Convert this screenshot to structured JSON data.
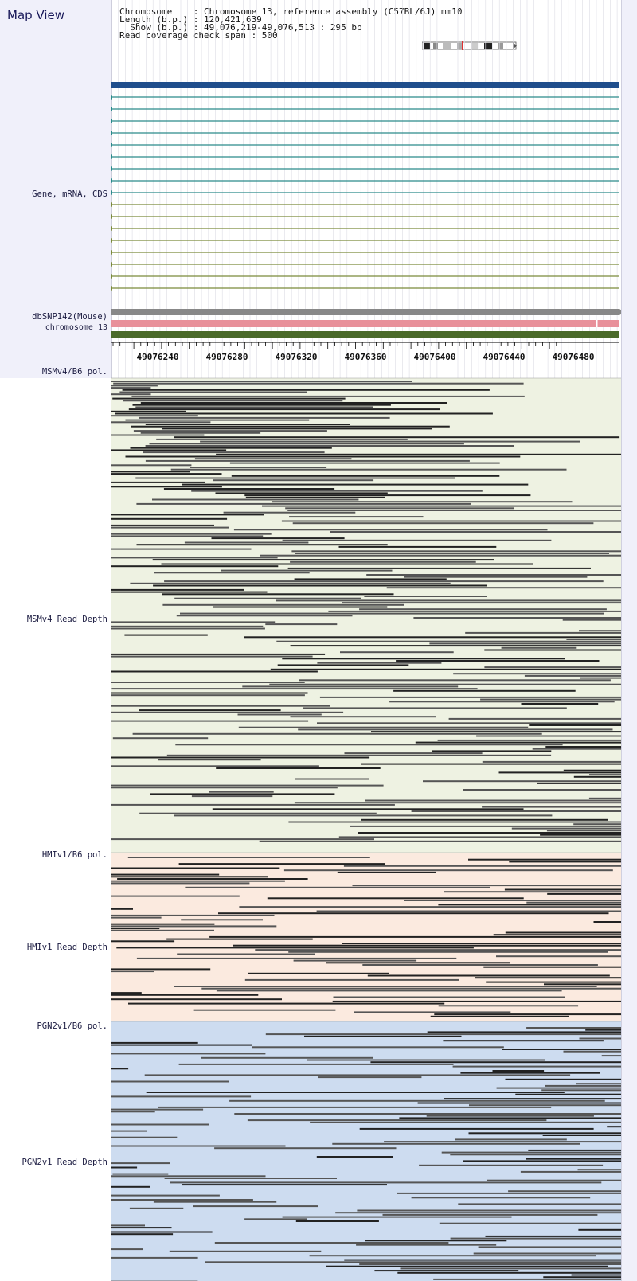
{
  "app": {
    "title": "Map View"
  },
  "header": {
    "chromosome_line": "Chromosome    : Chromosome 13, reference assembly (C57BL/6J) mm10",
    "length_line": "Length (b.p.) : 120,421,639",
    "show_line": "  Show (b.p.) : 49,076,219-49,076,513 : 295 bp",
    "span_line": "Read coverage check span : 500"
  },
  "labels": {
    "gene": "Gene, mRNA, CDS",
    "dbsnp": "dbSNP142(Mouse)",
    "chromosome": "chromosome 13",
    "msm_pol": "MSMv4/B6 pol.",
    "msm_depth": "MSMv4 Read Depth",
    "hmi_pol": "HMIv1/B6 pol.",
    "hmi_depth": "HMIv1 Read Depth",
    "pgn_pol": "PGN2v1/B6 pol.",
    "pgn_depth": "PGN2v1 Read Depth"
  },
  "ruler": {
    "ticks": [
      "49076240",
      "49076280",
      "49076320",
      "49076360",
      "49076400",
      "49076440",
      "49076480"
    ]
  },
  "colors": {
    "gene_main": "#1f4e8c",
    "mrna_teal": "#2a8a8a",
    "mrna_olive": "#7a8a3a",
    "gray_bar": "#888888",
    "dbsnp": "#e8909a",
    "chromosome": "#4a6a2a",
    "msm_bg": "#eef2e2",
    "hmi_bg": "#fbeadf",
    "pgn_bg": "#cddcf0",
    "read_dark": "#222222",
    "read_mid": "#555555"
  }
}
